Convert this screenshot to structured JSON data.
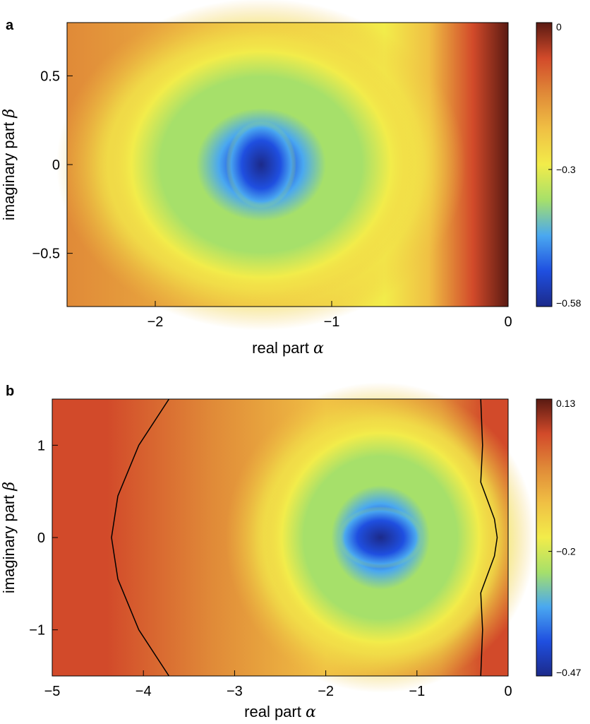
{
  "colors": {
    "colormap": [
      "#1c2a8a",
      "#1f4fe0",
      "#4aa8f0",
      "#a6e06a",
      "#f2ec4a",
      "#f0c044",
      "#e08a38",
      "#d24a2a",
      "#5a1a12"
    ],
    "contour": "#000000"
  },
  "chart_data": [
    {
      "panel": "a",
      "type": "heatmap",
      "xlabel_text": "real part",
      "xlabel_symbol": "α",
      "ylabel_text": "imaginary part",
      "ylabel_symbol": "β",
      "xlim": [
        -2.5,
        0
      ],
      "ylim": [
        -0.8,
        0.8
      ],
      "xticks": [
        -2,
        -1,
        0
      ],
      "xtick_labels": [
        "−2",
        "−1",
        "0"
      ],
      "yticks": [
        -0.5,
        0,
        0.5
      ],
      "ytick_labels": [
        "−0.5",
        "0",
        "0.5"
      ],
      "colorbar": {
        "min": -0.58,
        "max": 0,
        "ticks": [
          0,
          -0.3,
          -0.58
        ],
        "tick_labels": [
          "0",
          "−0.3",
          "−0.58"
        ]
      },
      "minimum_location": [
        -1.4,
        0.0
      ],
      "minimum_value": -0.58,
      "contour": false
    },
    {
      "panel": "b",
      "type": "heatmap",
      "xlabel_text": "real part",
      "xlabel_symbol": "α",
      "ylabel_text": "imaginary part",
      "ylabel_symbol": "β",
      "xlim": [
        -5,
        0
      ],
      "ylim": [
        -1.5,
        1.5
      ],
      "xticks": [
        -5,
        -4,
        -3,
        -2,
        -1,
        0
      ],
      "xtick_labels": [
        "−5",
        "−4",
        "−3",
        "−2",
        "−1",
        "0"
      ],
      "yticks": [
        -1,
        0,
        1
      ],
      "ytick_labels": [
        "−1",
        "0",
        "1"
      ],
      "colorbar": {
        "min": -0.47,
        "max": 0.13,
        "ticks": [
          0.13,
          -0.2,
          -0.47
        ],
        "tick_labels": [
          "0.13",
          "−0.2",
          "−0.47"
        ]
      },
      "minimum_location": [
        -1.4,
        0.0
      ],
      "minimum_value": -0.47,
      "contour": true,
      "contour_level": 0
    }
  ]
}
